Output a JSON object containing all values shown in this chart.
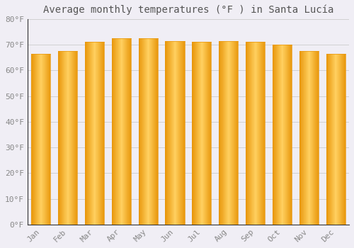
{
  "title": "Average monthly temperatures (°F ) in Santa Lucía",
  "months": [
    "Jan",
    "Feb",
    "Mar",
    "Apr",
    "May",
    "Jun",
    "Jul",
    "Aug",
    "Sep",
    "Oct",
    "Nov",
    "Dec"
  ],
  "values": [
    66.5,
    67.5,
    71.0,
    72.5,
    72.5,
    71.5,
    71.0,
    71.5,
    71.0,
    70.0,
    67.5,
    66.5
  ],
  "bar_color_edge": "#E8960A",
  "bar_color_center": "#FFD060",
  "background_color": "#F0EEF5",
  "plot_bg_color": "#F0EEF5",
  "grid_color": "#CCCCCC",
  "tick_label_color": "#888888",
  "title_color": "#555555",
  "spine_color": "#333333",
  "ylim": [
    0,
    80
  ],
  "yticks": [
    0,
    10,
    20,
    30,
    40,
    50,
    60,
    70,
    80
  ],
  "ytick_labels": [
    "0°F",
    "10°F",
    "20°F",
    "30°F",
    "40°F",
    "50°F",
    "60°F",
    "70°F",
    "80°F"
  ],
  "title_fontsize": 10,
  "tick_fontsize": 8
}
